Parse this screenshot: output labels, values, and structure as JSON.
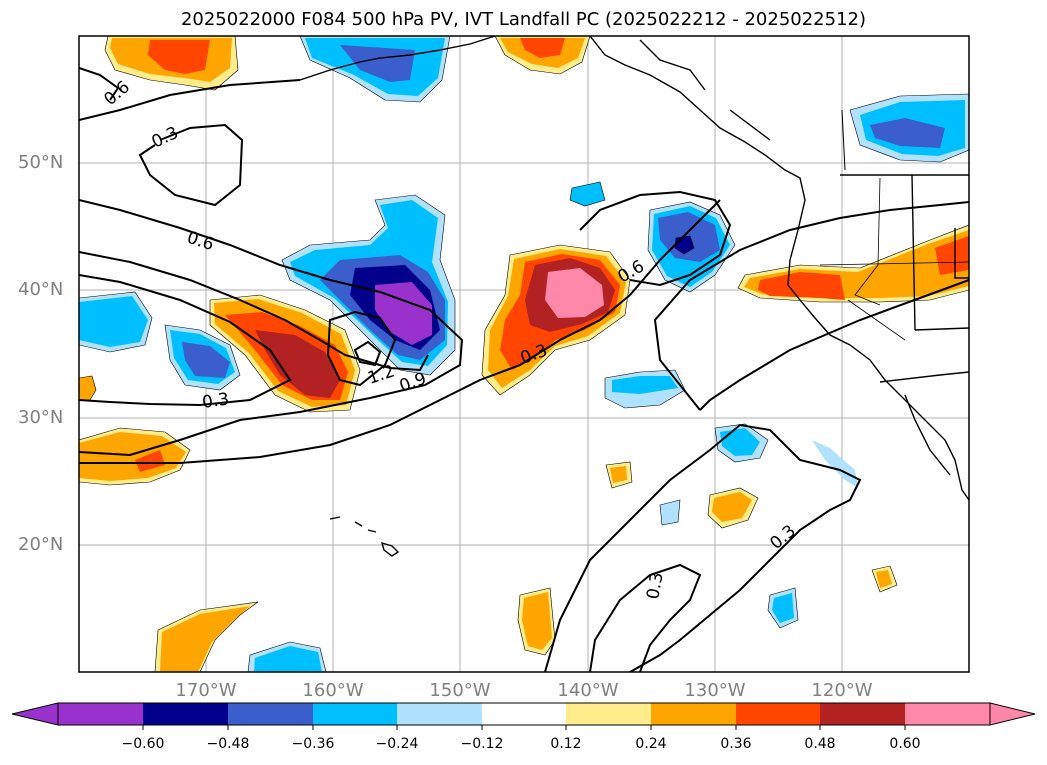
{
  "title": "2025022000 F084 500 hPa PV, IVT Landfall PC (2025022212 - 2025022512)",
  "lat_labels": [
    "50°N",
    "40°N",
    "30°N",
    "20°N"
  ],
  "lon_labels": [
    "170°W",
    "160°W",
    "150°W",
    "140°W",
    "130°W",
    "120°W"
  ],
  "contour_labels": [
    "0.6",
    "0.3",
    "0.6",
    "0.3",
    "1.2",
    "0.9",
    "0.3",
    "0.6",
    "0.3",
    "0.3"
  ],
  "colorbar": {
    "ticks": [
      "−0.60",
      "−0.48",
      "−0.36",
      "−0.24",
      "−0.12",
      "0.12",
      "0.24",
      "0.36",
      "0.48",
      "0.60"
    ],
    "colors": [
      "#9932cc",
      "#00008b",
      "#3a5fcd",
      "#00bfff",
      "#b0e2ff",
      "#ffffff",
      "#ffec8b",
      "#ffa500",
      "#ff4500",
      "#b22222",
      "#ff88aa",
      "#ff88aa"
    ]
  },
  "colors": {
    "purple": "#9932cc",
    "navy": "#00008b",
    "blue": "#3a5fcd",
    "cyan": "#00bfff",
    "lightblue": "#b0e2ff",
    "yellow": "#ffec8b",
    "orange": "#ffa500",
    "red": "#ff4500",
    "darkred": "#b22222",
    "pink": "#ff88aa"
  }
}
